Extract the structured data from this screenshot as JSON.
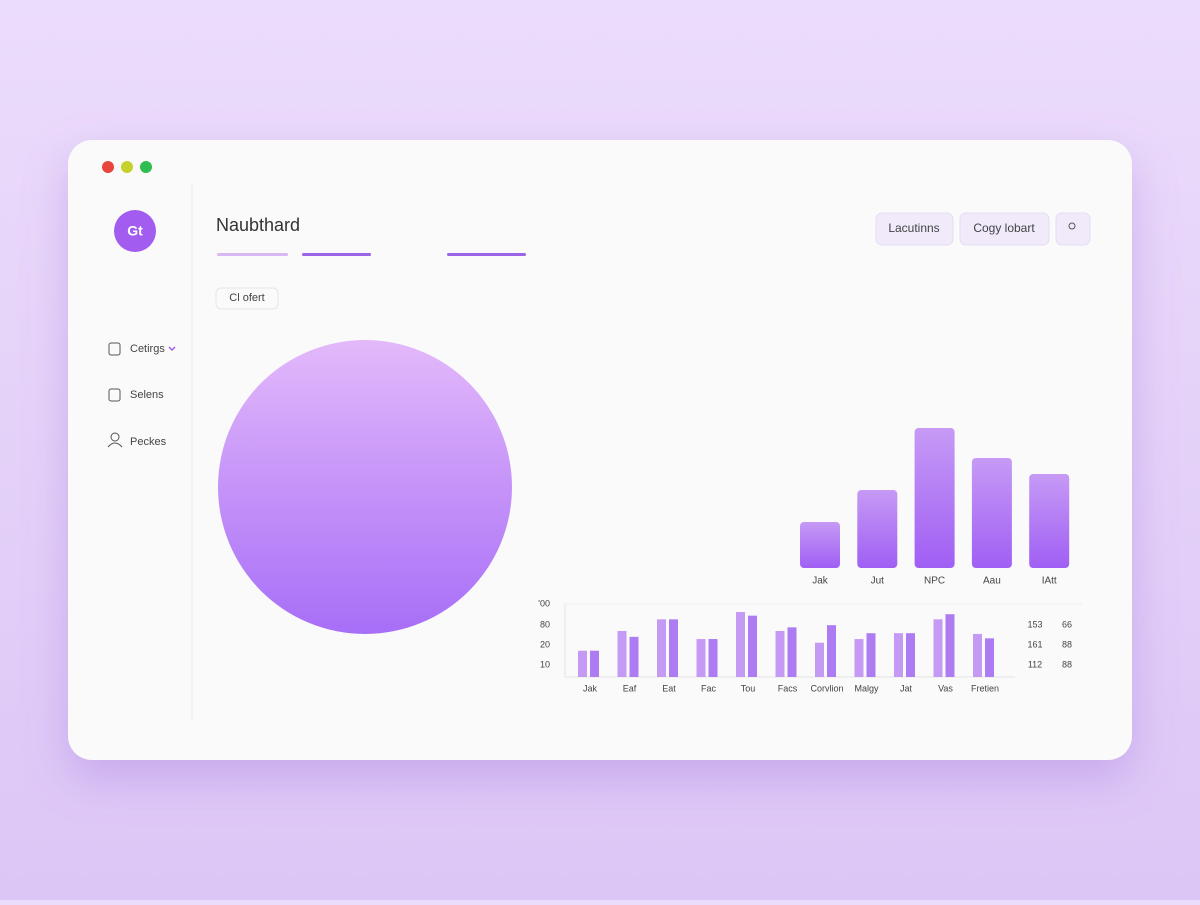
{
  "sidebar": {
    "logo": "Gt",
    "nav": [
      "Cetirgs",
      "Selens",
      "Peckes"
    ]
  },
  "header": {
    "title": "Naubthard",
    "buttons": [
      "Lacutinns",
      "Cogy lobart"
    ]
  },
  "filter": "Cl ofert",
  "charts": [
    {
      "type": "bar",
      "categories": [
        "Jak",
        "Jut",
        "NPC",
        "Aau",
        "IAtt"
      ],
      "values": [
        46,
        78,
        140,
        110,
        94
      ],
      "color": "#a66cf5"
    },
    {
      "type": "grouped-bar",
      "categories": [
        "Jak",
        "Eaf",
        "Eat",
        "Fac",
        "Tou",
        "Facs",
        "Corvlion",
        "Malgy",
        "Jat",
        "Vas",
        "Fretien"
      ],
      "series": [
        {
          "color": "#c49af5",
          "values": [
            36,
            63,
            79,
            52,
            89,
            63,
            47,
            52,
            60,
            79,
            59
          ]
        },
        {
          "color": "#ad7cf2",
          "values": [
            36,
            55,
            79,
            52,
            84,
            68,
            71,
            60,
            60,
            86,
            53
          ]
        }
      ],
      "y_labels": [
        "'00",
        "80",
        "20",
        "10"
      ],
      "side_labels": [
        [
          "153",
          "66"
        ],
        [
          "161",
          "88"
        ],
        [
          "112",
          "88"
        ]
      ]
    }
  ]
}
